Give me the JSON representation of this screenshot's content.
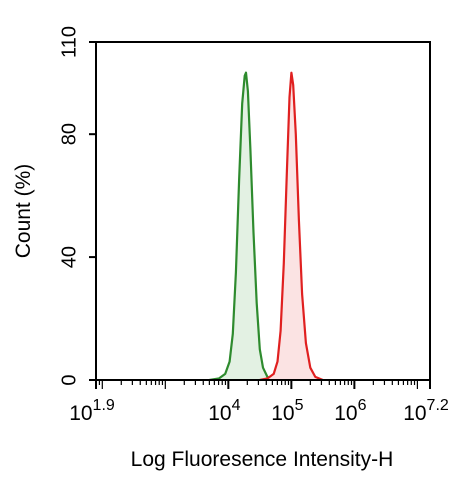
{
  "chart_data": {
    "type": "histogram",
    "xlabel": "Log Fluoresence Intensity-H",
    "ylabel": "Count  (%)",
    "x_scale": "log",
    "xlim_log10": [
      1.9,
      7.2
    ],
    "ylim": [
      0,
      110
    ],
    "grid": false,
    "x_ticks": [
      {
        "base": "10",
        "exp": "1.9",
        "log10": 1.9
      },
      {
        "base": "10",
        "exp": "4",
        "log10": 4
      },
      {
        "base": "10",
        "exp": "5",
        "log10": 5
      },
      {
        "base": "10",
        "exp": "6",
        "log10": 6
      },
      {
        "base": "10",
        "exp": "7.2",
        "log10": 7.2
      }
    ],
    "y_ticks": [
      {
        "label": "0",
        "value": 0
      },
      {
        "label": "40",
        "value": 40
      },
      {
        "label": "80",
        "value": 80
      },
      {
        "label": "110",
        "value": 110
      }
    ],
    "series": [
      {
        "color": "#2e8b2e",
        "fill": "#e3f1e3",
        "peak_log10": 4.27,
        "peak_value": 100,
        "points_log10": [
          [
            3.7,
            0
          ],
          [
            3.85,
            0.5
          ],
          [
            3.95,
            2
          ],
          [
            4.02,
            6
          ],
          [
            4.07,
            15
          ],
          [
            4.12,
            35
          ],
          [
            4.17,
            65
          ],
          [
            4.22,
            90
          ],
          [
            4.26,
            99
          ],
          [
            4.28,
            100
          ],
          [
            4.31,
            94
          ],
          [
            4.35,
            75
          ],
          [
            4.4,
            48
          ],
          [
            4.45,
            25
          ],
          [
            4.5,
            10
          ],
          [
            4.55,
            4
          ],
          [
            4.62,
            1
          ],
          [
            4.72,
            0
          ]
        ]
      },
      {
        "color": "#e02020",
        "fill": "#fbe3e3",
        "peak_log10": 5.0,
        "peak_value": 100,
        "points_log10": [
          [
            4.5,
            0
          ],
          [
            4.62,
            0.5
          ],
          [
            4.72,
            2
          ],
          [
            4.78,
            6
          ],
          [
            4.83,
            16
          ],
          [
            4.88,
            38
          ],
          [
            4.93,
            68
          ],
          [
            4.97,
            92
          ],
          [
            5.0,
            100
          ],
          [
            5.03,
            96
          ],
          [
            5.07,
            80
          ],
          [
            5.12,
            52
          ],
          [
            5.17,
            28
          ],
          [
            5.23,
            12
          ],
          [
            5.3,
            4
          ],
          [
            5.38,
            1
          ],
          [
            5.5,
            0
          ]
        ]
      }
    ]
  }
}
